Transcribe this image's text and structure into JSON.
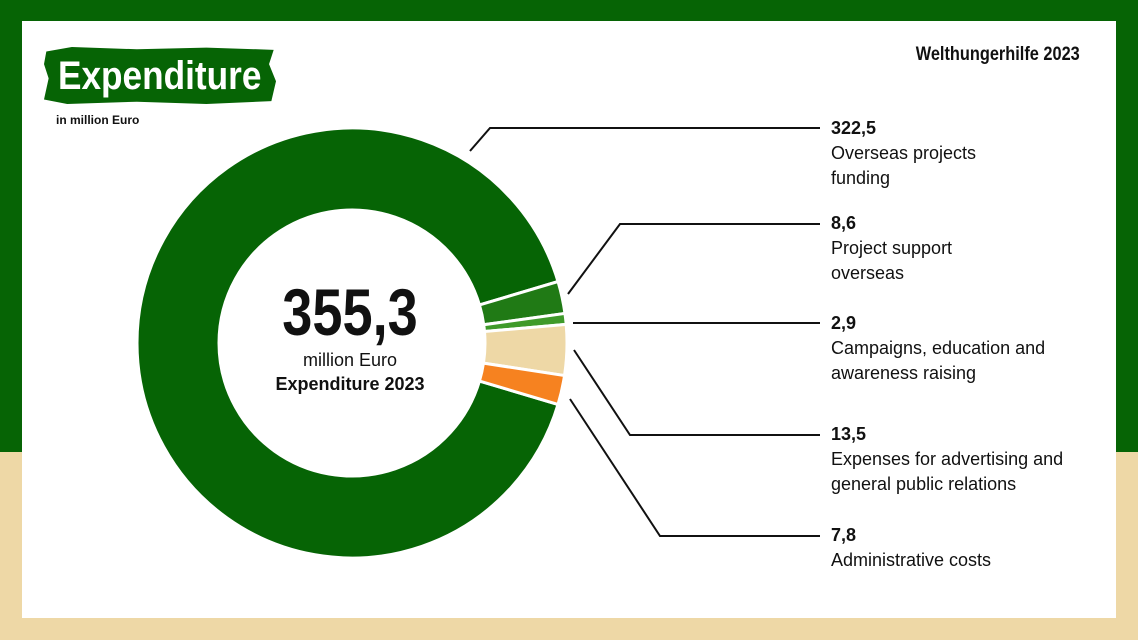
{
  "header": {
    "title": "Expenditure",
    "unit_note": "in million Euro",
    "brand": "Welthungerhilfe 2023"
  },
  "center": {
    "total": "355,3",
    "unit": "million Euro",
    "label": "Expenditure 2023"
  },
  "colors": {
    "dark_green": "#066405",
    "mid_green": "#207a15",
    "light_green": "#3f9a2a",
    "beige": "#eed8a6",
    "orange": "#f68220"
  },
  "chart_data": {
    "type": "pie",
    "donut": true,
    "title": "Expenditure",
    "unit": "in million Euro",
    "total": 355.3,
    "slices": [
      {
        "label": "Overseas projects funding",
        "value": 322.5,
        "display": "322,5",
        "color": "#066405"
      },
      {
        "label": "Project support overseas",
        "value": 8.6,
        "display": "8,6",
        "color": "#207a15"
      },
      {
        "label": "Campaigns, education and awareness raising",
        "value": 2.9,
        "display": "2,9",
        "color": "#3f9a2a"
      },
      {
        "label": "Expenses for advertising and general public relations",
        "value": 13.5,
        "display": "13,5",
        "color": "#eed8a6"
      },
      {
        "label": "Administrative costs",
        "value": 7.8,
        "display": "7,8",
        "color": "#f68220"
      }
    ]
  }
}
